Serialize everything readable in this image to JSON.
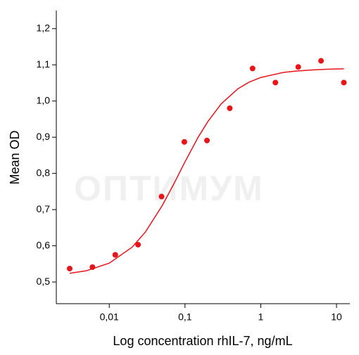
{
  "chart_data": {
    "type": "scatter",
    "x_label": "Log concentration rhIL-7, ng/mL",
    "y_label": "Mean OD",
    "watermark": "ОПТИМУМ",
    "xscale": "log",
    "xlim": [
      0.002,
      15
    ],
    "ylim": [
      0.44,
      1.25
    ],
    "xticks": [
      {
        "value": 0.01,
        "label": "0,01"
      },
      {
        "value": 0.1,
        "label": "0,1"
      },
      1,
      10
    ],
    "yticks": [
      {
        "value": 0.5,
        "label": "0,5"
      },
      {
        "value": 0.6,
        "label": "0,6"
      },
      {
        "value": 0.7,
        "label": "0,7"
      },
      {
        "value": 0.8,
        "label": "0,8"
      },
      {
        "value": 0.9,
        "label": "0,9"
      },
      {
        "value": 1.0,
        "label": "1,0"
      },
      {
        "value": 1.1,
        "label": "1,1"
      },
      {
        "value": 1.2,
        "label": "1,2"
      }
    ],
    "grid": false,
    "series": [
      {
        "style": "markers",
        "color": "#e8141a",
        "x": [
          0.003,
          0.006,
          0.012,
          0.024,
          0.049,
          0.098,
          0.195,
          0.39,
          0.78,
          1.56,
          3.125,
          6.25,
          12.5
        ],
        "values": [
          0.537,
          0.541,
          0.575,
          0.603,
          0.736,
          0.887,
          0.891,
          0.98,
          1.09,
          1.051,
          1.094,
          1.111,
          1.051
        ]
      },
      {
        "style": "line",
        "color": "#e8141a",
        "x": [
          0.003,
          0.005,
          0.01,
          0.02,
          0.03,
          0.05,
          0.07,
          0.1,
          0.15,
          0.2,
          0.3,
          0.5,
          0.7,
          1,
          2,
          3,
          5,
          8,
          12.5
        ],
        "values": [
          0.524,
          0.531,
          0.552,
          0.596,
          0.638,
          0.711,
          0.768,
          0.832,
          0.901,
          0.943,
          0.992,
          1.034,
          1.052,
          1.065,
          1.079,
          1.083,
          1.086,
          1.088,
          1.089
        ]
      }
    ]
  }
}
